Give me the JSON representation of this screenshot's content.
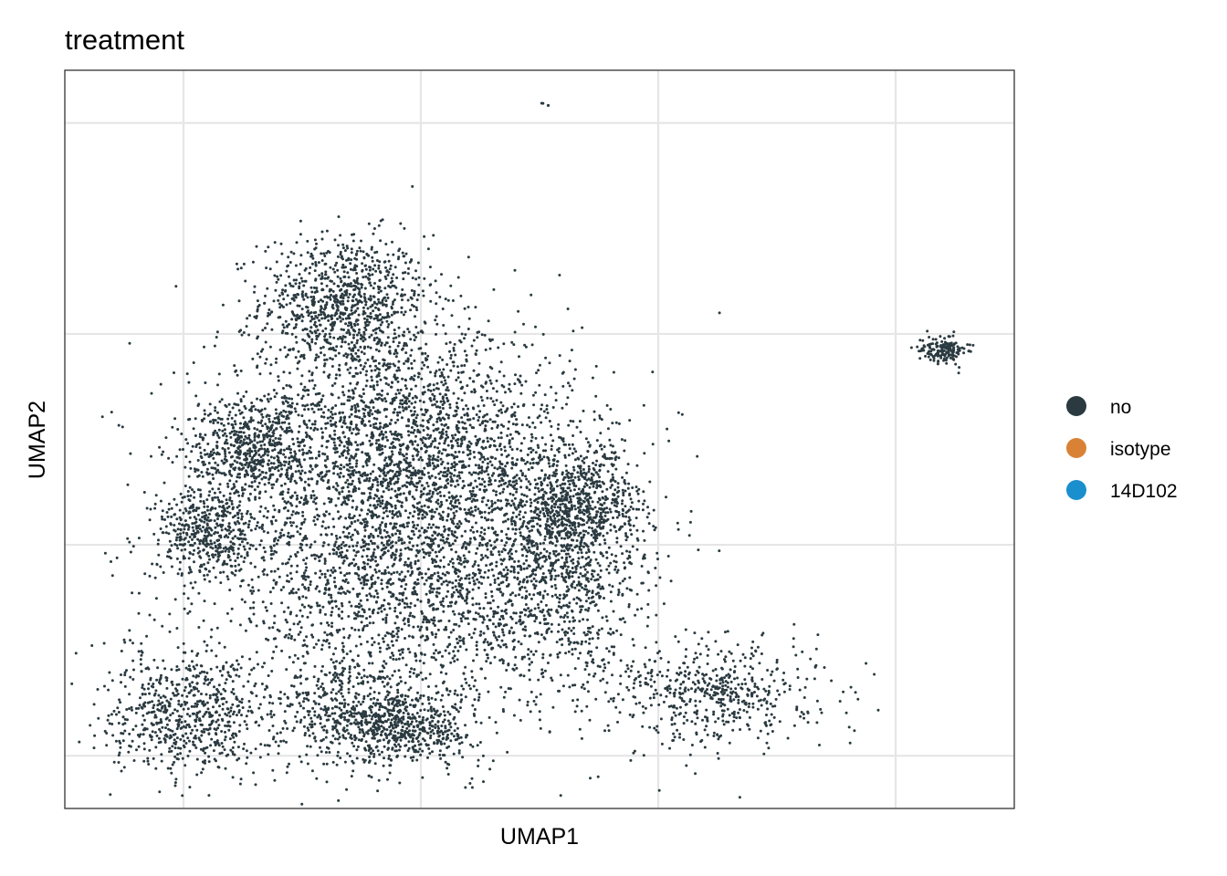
{
  "chart_data": {
    "type": "scatter",
    "title": "treatment",
    "xlabel": "UMAP1",
    "ylabel": "UMAP2",
    "grid": true,
    "tick_labels_shown": false,
    "legend": {
      "placement": "right",
      "entries": [
        {
          "label": "no",
          "color": "#2a3a40"
        },
        {
          "label": "isotype",
          "color": "#d98236"
        },
        {
          "label": "14D102",
          "color": "#1a8fce"
        }
      ]
    },
    "xlim": [
      -1.0,
      7.0
    ],
    "ylim": [
      -0.5,
      6.5
    ],
    "x_grid": [
      0,
      2,
      4,
      6
    ],
    "y_grid": [
      0,
      2,
      4,
      6
    ],
    "point_color": "#2a3a40",
    "clusters": [
      {
        "series": "no",
        "cx": 1.35,
        "cy": 4.3,
        "sx": 0.35,
        "sy": 0.32,
        "n": 900
      },
      {
        "series": "no",
        "cx": 1.8,
        "cy": 3.0,
        "sx": 0.75,
        "sy": 0.55,
        "n": 2200
      },
      {
        "series": "no",
        "cx": 1.9,
        "cy": 1.7,
        "sx": 0.8,
        "sy": 0.7,
        "n": 2400
      },
      {
        "series": "no",
        "cx": 0.55,
        "cy": 2.9,
        "sx": 0.25,
        "sy": 0.25,
        "n": 500
      },
      {
        "series": "no",
        "cx": 0.2,
        "cy": 2.1,
        "sx": 0.22,
        "sy": 0.22,
        "n": 450
      },
      {
        "series": "no",
        "cx": 0.05,
        "cy": 0.4,
        "sx": 0.35,
        "sy": 0.3,
        "n": 700
      },
      {
        "series": "no",
        "cx": 1.9,
        "cy": 0.25,
        "sx": 0.28,
        "sy": 0.15,
        "n": 450
      },
      {
        "series": "no",
        "cx": 1.4,
        "cy": 0.4,
        "sx": 0.3,
        "sy": 0.25,
        "n": 400
      },
      {
        "series": "no",
        "cx": 3.2,
        "cy": 1.9,
        "sx": 0.35,
        "sy": 0.55,
        "n": 900
      },
      {
        "series": "no",
        "cx": 3.35,
        "cy": 2.4,
        "sx": 0.25,
        "sy": 0.25,
        "n": 500
      },
      {
        "series": "no",
        "cx": 4.5,
        "cy": 0.6,
        "sx": 0.45,
        "sy": 0.25,
        "n": 550
      },
      {
        "series": "no",
        "cx": 6.4,
        "cy": 3.85,
        "sx": 0.1,
        "sy": 0.06,
        "n": 160
      },
      {
        "series": "no",
        "cx": 3.05,
        "cy": 6.18,
        "sx": 0.02,
        "sy": 0.02,
        "n": 4
      },
      {
        "series": "no",
        "cx": 3.9,
        "cy": 1.7,
        "sx": 0.06,
        "sy": 0.06,
        "n": 8
      }
    ]
  }
}
